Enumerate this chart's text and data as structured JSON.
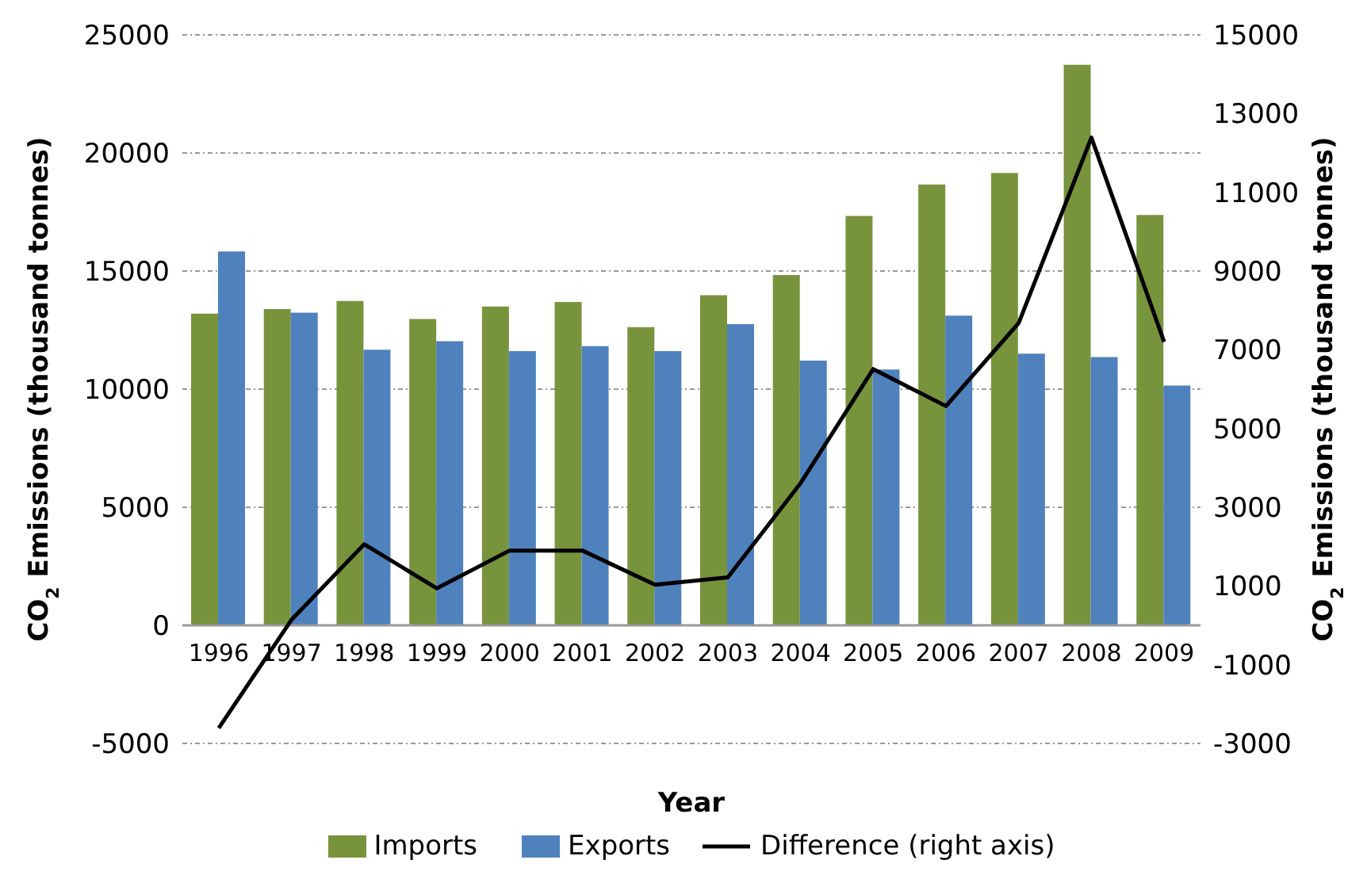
{
  "chart_data": {
    "type": "bar",
    "categories": [
      "1996",
      "1997",
      "1998",
      "1999",
      "2000",
      "2001",
      "2002",
      "2003",
      "2004",
      "2005",
      "2006",
      "2007",
      "2008",
      "2009"
    ],
    "xlabel": "Year",
    "ylabel": "CO$_{2}$ Emissions (thousand tonnes)",
    "y2label": "CO$_{2}$ Emissions (thousand tonnes)",
    "series": [
      {
        "name": "Imports",
        "color": "#77933c",
        "values": [
          13200,
          13390,
          13730,
          12970,
          13500,
          13690,
          12630,
          13980,
          14830,
          17330,
          18670,
          19150,
          23730,
          17370
        ]
      },
      {
        "name": "Exports",
        "color": "#4f81bd",
        "values": [
          15830,
          13240,
          11670,
          12030,
          11610,
          11820,
          11610,
          12750,
          11210,
          10830,
          13110,
          11500,
          11360,
          10150
        ]
      },
      {
        "name": "Difference (right axis)",
        "type": "line",
        "axis": "y2",
        "color": "#000000",
        "marker": "none",
        "values": [
          -2610,
          140,
          2060,
          940,
          1900,
          1900,
          1030,
          1220,
          3610,
          6510,
          5570,
          7680,
          12390,
          7200
        ]
      }
    ],
    "ylim": [
      -5000,
      25000
    ],
    "yticks": [
      -5000,
      0,
      5000,
      10000,
      15000,
      20000,
      25000
    ],
    "y2lim": [
      -3000,
      15000
    ],
    "y2ticks": [
      -3000,
      -1000,
      1000,
      3000,
      5000,
      7000,
      9000,
      11000,
      13000,
      15000
    ],
    "grid": "y",
    "legend": "bottom"
  }
}
